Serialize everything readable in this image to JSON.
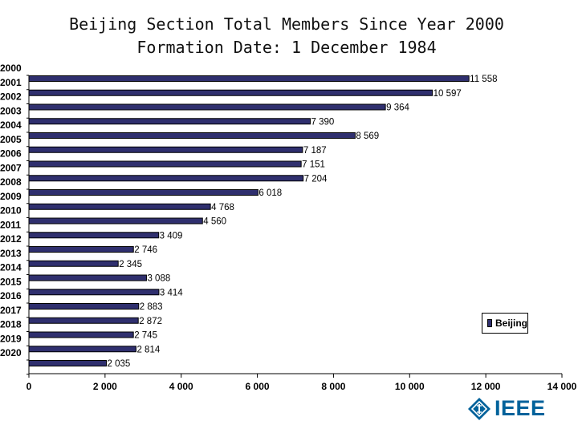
{
  "title_line1": "Beijing Section Total Members Since Year 2000",
  "title_line2": "Formation Date: 1 December 1984",
  "legend": {
    "label": "Beijing",
    "color": "#2f2f6e"
  },
  "logo": {
    "text": "IEEE",
    "color": "#00629b"
  },
  "chart_data": {
    "type": "bar",
    "orientation": "horizontal",
    "categories": [
      "2000",
      "2001",
      "2002",
      "2003",
      "2004",
      "2005",
      "2006",
      "2007",
      "2008",
      "2009",
      "2010",
      "2011",
      "2012",
      "2013",
      "2014",
      "2015",
      "2016",
      "2017",
      "2018",
      "2019",
      "2020"
    ],
    "series": [
      {
        "name": "Beijing",
        "values": [
          11558,
          10597,
          9364,
          7390,
          8569,
          7187,
          7151,
          7204,
          6018,
          4768,
          4560,
          3409,
          2746,
          2345,
          3088,
          3414,
          2883,
          2872,
          2745,
          2814,
          2035
        ],
        "value_labels": [
          "11 558",
          "10 597",
          "9 364",
          "7 390",
          "8 569",
          "7 187",
          "7 151",
          "7 204",
          "6 018",
          "4 768",
          "4 560",
          "3 409",
          "2 746",
          "2 345",
          "3 088",
          "3 414",
          "2 883",
          "2 872",
          "2 745",
          "2 814",
          "2 035"
        ]
      }
    ],
    "xlim": [
      0,
      14000
    ],
    "x_ticks": [
      0,
      2000,
      4000,
      6000,
      8000,
      10000,
      12000,
      14000
    ],
    "x_tick_labels": [
      "0",
      "2 000",
      "4 000",
      "6 000",
      "8 000",
      "10 000",
      "12 000",
      "14 000"
    ],
    "grid": false,
    "legend_position": "right"
  }
}
